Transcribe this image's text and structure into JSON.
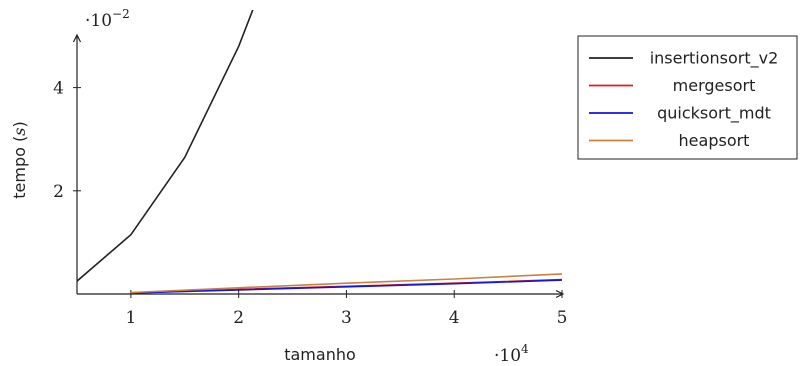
{
  "chart_data": {
    "type": "line",
    "xlabel": "tamanho",
    "ylabel_prefix": "tempo (",
    "ylabel_var": "s",
    "ylabel_suffix": ")",
    "x_multiplier": {
      "base": "·10",
      "exp": "4"
    },
    "y_multiplier": {
      "base": "·10",
      "exp": "−2"
    },
    "xlim": [
      0.5,
      5
    ],
    "ylim": [
      0,
      0.05
    ],
    "xticks": [
      {
        "value": 1,
        "label": "1"
      },
      {
        "value": 2,
        "label": "2"
      },
      {
        "value": 3,
        "label": "3"
      },
      {
        "value": 4,
        "label": "4"
      },
      {
        "value": 5,
        "label": "5"
      }
    ],
    "yticks": [
      {
        "value": 0.02,
        "label": "2"
      },
      {
        "value": 0.04,
        "label": "4"
      }
    ],
    "legend_position": "top-right",
    "series": [
      {
        "name": "insertionsort_v2",
        "color": "#222222",
        "x": [
          0.5,
          1.0,
          1.5,
          2.0,
          2.5
        ],
        "y": [
          0.0025,
          0.0115,
          0.0265,
          0.048,
          0.075
        ]
      },
      {
        "name": "mergesort",
        "color": "#e41a1c",
        "x": [
          1.0,
          2.0,
          3.0,
          4.0,
          5.0
        ],
        "y": [
          0.0002,
          0.0009,
          0.0015,
          0.0021,
          0.0028
        ]
      },
      {
        "name": "quicksort_mdt",
        "color": "#1515e0",
        "x": [
          1.0,
          2.0,
          3.0,
          4.0,
          5.0
        ],
        "y": [
          0.0002,
          0.0008,
          0.0014,
          0.002,
          0.0027
        ]
      },
      {
        "name": "heapsort",
        "color": "#c8833f",
        "x": [
          1.0,
          2.0,
          3.0,
          4.0,
          5.0
        ],
        "y": [
          0.0003,
          0.0012,
          0.0021,
          0.0029,
          0.0039
        ]
      }
    ]
  }
}
